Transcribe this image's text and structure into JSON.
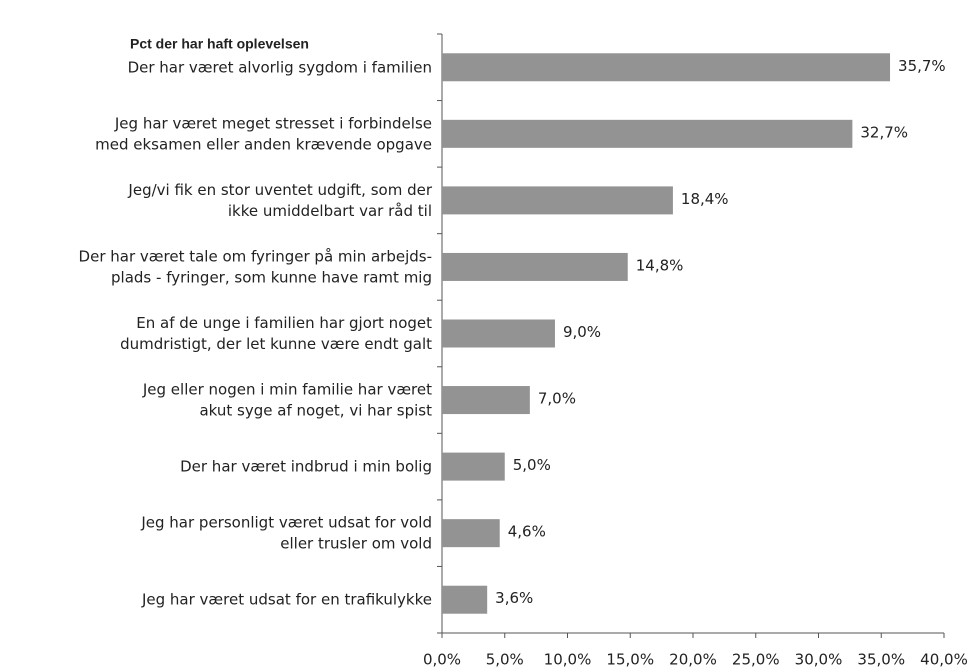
{
  "chart_data": {
    "type": "barh",
    "title": "Pct der har haft oplevelsen",
    "categories": [
      [
        "Der har været alvorlig sygdom i familien"
      ],
      [
        "Jeg har været meget stresset i forbindelse",
        "med eksamen eller anden krævende opgave"
      ],
      [
        "Jeg/vi fik en stor uventet udgift, som der",
        "ikke umiddelbart var råd til"
      ],
      [
        "Der har været tale om fyringer på min arbejds-",
        "plads - fyringer, som kunne have ramt mig"
      ],
      [
        "En af de unge i familien har gjort noget",
        "dumdristigt, der let kunne være endt galt"
      ],
      [
        "Jeg eller nogen i min familie har været",
        "akut syge af noget, vi har spist"
      ],
      [
        "Der har været indbrud i min bolig"
      ],
      [
        "Jeg har personligt været udsat for vold",
        "eller trusler om vold"
      ],
      [
        "Jeg har været udsat for en trafikulykke"
      ]
    ],
    "values": [
      35.7,
      32.7,
      18.4,
      14.8,
      9.0,
      7.0,
      5.0,
      4.6,
      3.6
    ],
    "value_labels": [
      "35,7%",
      "32,7%",
      "18,4%",
      "14,8%",
      "9,0%",
      "7,0%",
      "5,0%",
      "4,6%",
      "3,6%"
    ],
    "color": "#939393",
    "xlim": [
      0,
      40
    ],
    "xticks": [
      {
        "value": 0,
        "label": "0,0%"
      },
      {
        "value": 5,
        "label": "5,0%"
      },
      {
        "value": 10,
        "label": "10,0%"
      },
      {
        "value": 15,
        "label": "15,0%"
      },
      {
        "value": 20,
        "label": "20,0%"
      },
      {
        "value": 25,
        "label": "25,0%"
      },
      {
        "value": 30,
        "label": "30,0%"
      },
      {
        "value": 35,
        "label": "35,0%"
      },
      {
        "value": 40,
        "label": "40,0%"
      }
    ]
  }
}
